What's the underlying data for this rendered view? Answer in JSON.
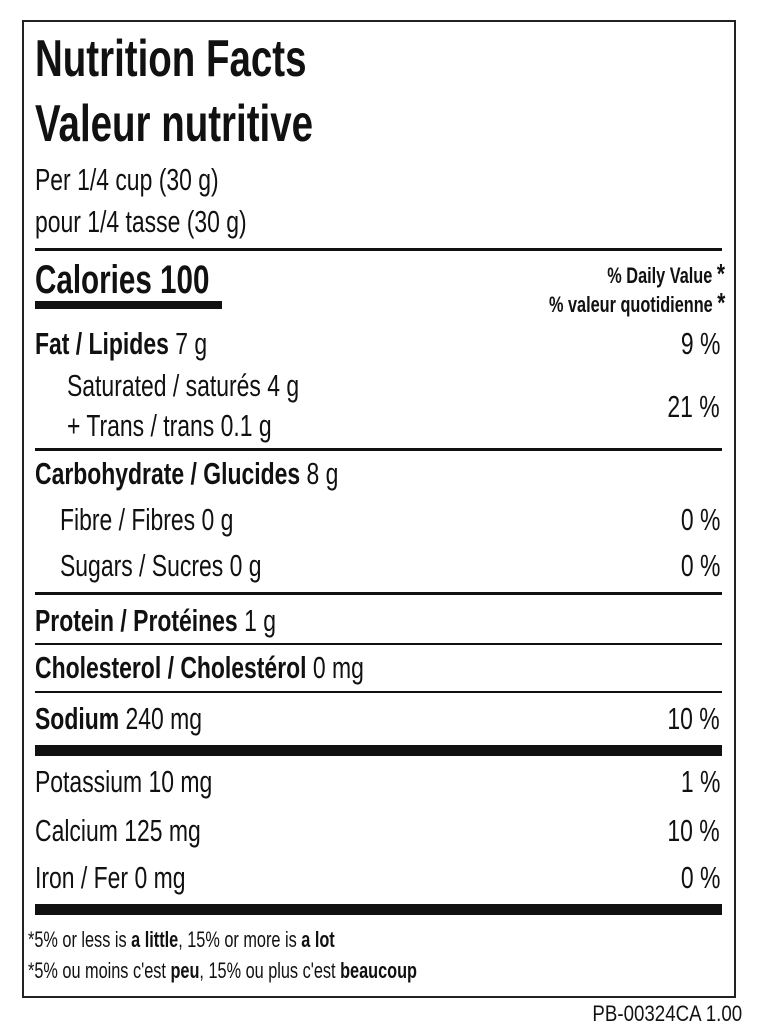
{
  "title_en": "Nutrition Facts",
  "title_fr": "Valeur nutritive",
  "serving_en": "Per 1/4 cup (30 g)",
  "serving_fr": "pour 1/4 tasse (30 g)",
  "calories": {
    "label": "Calories",
    "value": "100"
  },
  "dv_header_en": "% Daily Value",
  "dv_header_fr": "% valeur quotidienne",
  "asterisk": "*",
  "nutrients": {
    "fat": {
      "label": "Fat / Lipides",
      "amount": "7 g",
      "dv": "9 %"
    },
    "saturated": {
      "label": "Saturated / saturés",
      "amount": "4 g"
    },
    "trans": {
      "label": "+ Trans / trans",
      "amount": "0.1 g",
      "dv": "21 %"
    },
    "carb": {
      "label": "Carbohydrate / Glucides",
      "amount": "8 g"
    },
    "fibre": {
      "label": "Fibre / Fibres",
      "amount": "0 g",
      "dv": "0 %"
    },
    "sugars": {
      "label": "Sugars / Sucres",
      "amount": "0 g",
      "dv": "0 %"
    },
    "protein": {
      "label": "Protein / Protéines",
      "amount": "1 g"
    },
    "cholesterol": {
      "label": "Cholesterol / Cholestérol",
      "amount": "0 mg"
    },
    "sodium": {
      "label": "Sodium",
      "amount": "240 mg",
      "dv": "10 %"
    },
    "potassium": {
      "label": "Potassium",
      "amount": "10 mg",
      "dv": "1 %"
    },
    "calcium": {
      "label": "Calcium",
      "amount": "125 mg",
      "dv": "10 %"
    },
    "iron": {
      "label": "Iron / Fer",
      "amount": "0 mg",
      "dv": "0 %"
    }
  },
  "footnote_en": {
    "a": "*5% or less is ",
    "b": "a little",
    "c": ", 15% or more is ",
    "d": "a lot"
  },
  "footnote_fr": {
    "a": "*5% ou moins c'est ",
    "b": "peu",
    "c": ", 15% ou plus c'est ",
    "d": "beaucoup"
  },
  "product_code": "PB-00324CA 1.00"
}
